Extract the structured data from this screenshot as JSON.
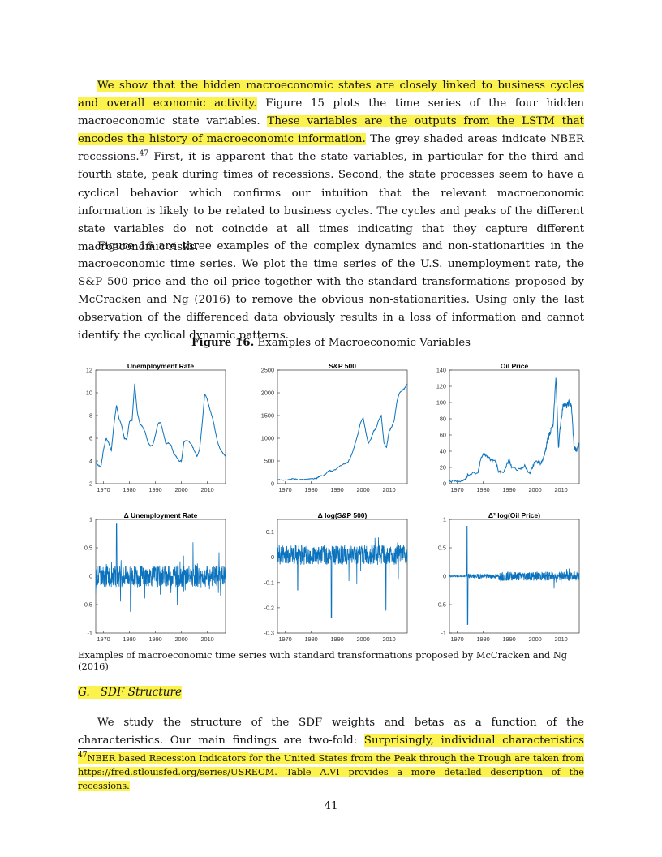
{
  "paragraphs": {
    "p1": {
      "hl_a": "We show that the hidden macroeconomic states are closely linked to business cycles and overall economic activity.",
      "t_a": " Figure 15 plots the time series of the four hidden macroeconomic state variables. ",
      "hl_b": "These variables are the outputs from the LSTM that encodes the history of macroeconomic information.",
      "t_b": " The grey shaded areas indicate NBER recessions.",
      "fn_ref": "47",
      "t_c": " First, it is apparent that the state variables, in particular for the third and fourth state, peak during times of recessions. Second, the state processes seem to have a cyclical behavior which confirms our intuition that the relevant macroeconomic information is likely to be related to business cycles. The cycles and peaks of the different state variables do not coincide at all times indicating that they capture different macroeconomic risks."
    },
    "p2": "Figure 16 are three examples of the complex dynamics and non-stationarities in the macroeconomic time series. We plot the time series of the U.S. unemployment rate, the S&P 500 price and the oil price together with the standard transformations proposed by McCracken and Ng (2016) to remove the obvious non-stationarities. Using only the last observation of the differenced data obviously results in a loss of information and cannot identify the cyclical dynamic patterns.",
    "p3": {
      "t_a": "We study the structure of the SDF weights and betas as a function of the characteristics. Our main findings are two-fold: ",
      "hl_a": "Surprisingly, individual characteristics have an almost linear effect on"
    }
  },
  "figure": {
    "label": "Figure 16.",
    "title": "Examples of Macroeconomic Variables",
    "caption": "Examples of macroeconomic time series with standard transformations proposed by McCracken and Ng (2016)"
  },
  "section": {
    "letter": "G.",
    "title": "SDF Structure"
  },
  "footnote": {
    "number": "47",
    "text": "NBER based Recession Indicators for the United States from the Peak through the Trough are taken from https://fred.stlouisfed.org/series/USRECM. Table A.VI provides a more detailed description of the recessions."
  },
  "page_number": "41",
  "colors": {
    "line": "#0b72bd",
    "highlight": "#fcf24d"
  },
  "chart_data": [
    {
      "type": "line",
      "title": "Unemployment Rate",
      "ylim": [
        2,
        12
      ],
      "yticks": [
        "12",
        "10",
        "8",
        "6",
        "4",
        "2"
      ],
      "xticks": [
        "1970",
        "1980",
        "1990",
        "2000",
        "2010"
      ],
      "series": [
        {
          "x": [
            1967,
            1968,
            1969,
            1970,
            1971,
            1972,
            1973,
            1974,
            1975,
            1976,
            1977,
            1978,
            1979,
            1980,
            1981,
            1982,
            1983,
            1984,
            1985,
            1986,
            1987,
            1988,
            1989,
            1990,
            1991,
            1992,
            1993,
            1994,
            1995,
            1996,
            1997,
            1998,
            1999,
            2000,
            2001,
            2002,
            2003,
            2004,
            2005,
            2006,
            2007,
            2008,
            2009,
            2010,
            2011,
            2012,
            2013,
            2014,
            2015,
            2016,
            2017
          ],
          "y": [
            3.9,
            3.6,
            3.5,
            5.0,
            6.0,
            5.6,
            4.9,
            7.2,
            8.9,
            7.7,
            7.1,
            6.0,
            5.9,
            7.5,
            7.6,
            10.8,
            8.3,
            7.3,
            7.0,
            6.6,
            5.7,
            5.3,
            5.4,
            6.3,
            7.3,
            7.4,
            6.5,
            5.5,
            5.6,
            5.4,
            4.7,
            4.4,
            4.0,
            4.0,
            5.7,
            5.8,
            5.7,
            5.4,
            4.9,
            4.4,
            5.0,
            7.3,
            9.9,
            9.4,
            8.5,
            7.8,
            6.7,
            5.6,
            5.0,
            4.7,
            4.4
          ]
        }
      ]
    },
    {
      "type": "line",
      "title": "S&P 500",
      "ylim": [
        0,
        2500
      ],
      "yticks": [
        "2500",
        "2000",
        "1500",
        "1000",
        "500",
        "0"
      ],
      "xticks": [
        "1970",
        "1980",
        "1990",
        "2000",
        "2010"
      ],
      "series": [
        {
          "x": [
            1967,
            1970,
            1973,
            1975,
            1978,
            1980,
            1982,
            1983,
            1985,
            1987,
            1988,
            1990,
            1992,
            1994,
            1995,
            1996,
            1997,
            1998,
            1999,
            2000,
            2001,
            2002,
            2003,
            2004,
            2005,
            2006,
            2007,
            2008,
            2009,
            2010,
            2011,
            2012,
            2013,
            2014,
            2015,
            2016,
            2017
          ],
          "y": [
            92,
            80,
            110,
            85,
            95,
            115,
            110,
            160,
            190,
            300,
            270,
            340,
            420,
            460,
            560,
            700,
            900,
            1100,
            1350,
            1450,
            1150,
            880,
            980,
            1150,
            1220,
            1400,
            1500,
            900,
            800,
            1150,
            1250,
            1400,
            1800,
            2000,
            2050,
            2100,
            2200
          ]
        }
      ]
    },
    {
      "type": "line",
      "title": "Oil Price",
      "ylim": [
        0,
        140
      ],
      "yticks": [
        "140",
        "120",
        "100",
        "80",
        "60",
        "40",
        "20",
        "0"
      ],
      "xticks": [
        "1970",
        "1980",
        "1990",
        "2000",
        "2010"
      ],
      "series": [
        {
          "x": [
            1967,
            1970,
            1973,
            1974,
            1978,
            1979,
            1980,
            1981,
            1983,
            1985,
            1986,
            1988,
            1990,
            1991,
            1994,
            1996,
            1998,
            1999,
            2000,
            2002,
            2003,
            2004,
            2005,
            2006,
            2007,
            2008,
            2009,
            2010,
            2011,
            2012,
            2013,
            2014,
            2015,
            2016,
            2017
          ],
          "y": [
            3,
            3,
            4,
            11,
            14,
            30,
            37,
            35,
            29,
            27,
            14,
            15,
            30,
            20,
            17,
            22,
            12,
            20,
            28,
            25,
            30,
            40,
            56,
            66,
            72,
            133,
            45,
            80,
            100,
            95,
            100,
            95,
            45,
            40,
            50
          ]
        }
      ]
    },
    {
      "type": "line",
      "title": "Δ Unemployment Rate",
      "ylim": [
        -1,
        1
      ],
      "yticks": [
        "1",
        "0.5",
        "0",
        "-0.5",
        "-1"
      ],
      "xticks": [
        "1970",
        "1980",
        "1990",
        "2000",
        "2010"
      ],
      "series": [
        {
          "x": [
            1967,
            2017
          ],
          "y": [
            0,
            0
          ]
        }
      ]
    },
    {
      "type": "line",
      "title": "Δ log(S&P 500)",
      "ylim": [
        -0.3,
        0.15
      ],
      "yticks": [
        "0.1",
        "0",
        "-0.1",
        "-0.2",
        "-0.3"
      ],
      "xticks": [
        "1970",
        "1980",
        "1990",
        "2000",
        "2010"
      ],
      "series": [
        {
          "x": [
            1967,
            2017
          ],
          "y": [
            0,
            0
          ]
        }
      ]
    },
    {
      "type": "line",
      "title": "Δ² log(Oil Price)",
      "ylim": [
        -1,
        1
      ],
      "yticks": [
        "1",
        "0.5",
        "0",
        "-0.5",
        "-1"
      ],
      "xticks": [
        "1970",
        "1980",
        "1990",
        "2000",
        "2010"
      ],
      "series": [
        {
          "x": [
            1967,
            2017
          ],
          "y": [
            0,
            0
          ]
        }
      ]
    }
  ]
}
